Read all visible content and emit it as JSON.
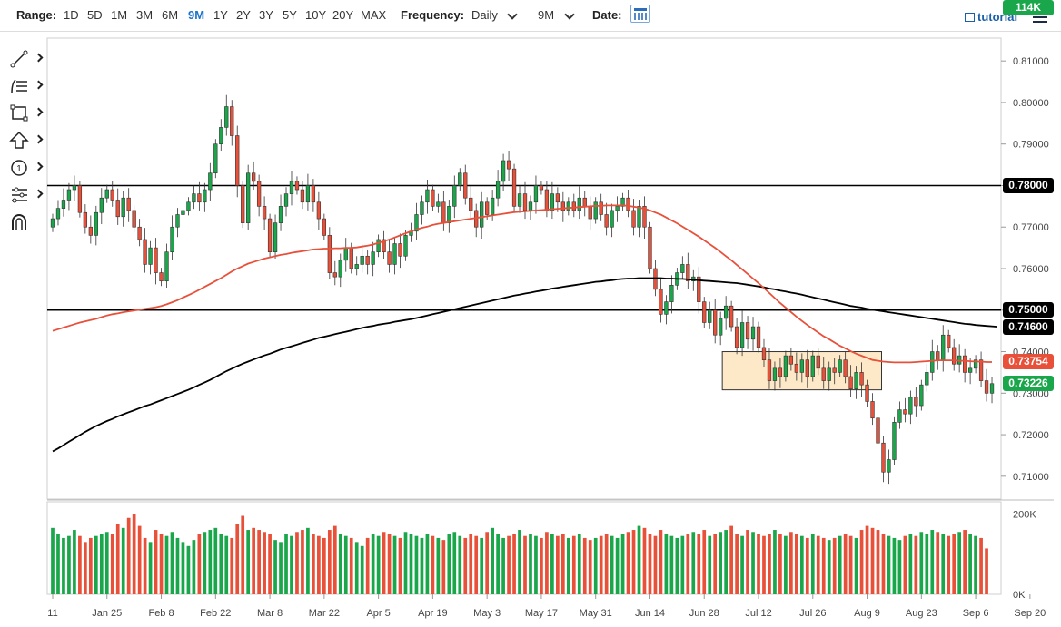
{
  "toolbar": {
    "range_label": "Range:",
    "ranges": [
      "1D",
      "5D",
      "1M",
      "3M",
      "6M",
      "9M",
      "1Y",
      "2Y",
      "3Y",
      "5Y",
      "10Y",
      "20Y",
      "MAX"
    ],
    "active_range": "9M",
    "frequency_label": "Frequency:",
    "frequency_value": "Daily",
    "period_value": "9M",
    "date_label": "Date:",
    "tutorial_label": "tutorial"
  },
  "drawing_tools": [
    "line-tool-icon",
    "fib-tool-icon",
    "rectangle-tool-icon",
    "arrow-tool-icon",
    "counter-tool-icon",
    "measure-tool-icon",
    "magnet-tool-icon"
  ],
  "chart_data": {
    "type": "candlestick",
    "ylim": [
      0.7045,
      0.8155
    ],
    "y_ticks": [
      0.71,
      0.72,
      0.73,
      0.74,
      0.75,
      0.76,
      0.77,
      0.78,
      0.79,
      0.8,
      0.81
    ],
    "y_tick_labels": [
      "0.71000",
      "0.72000",
      "0.73000",
      "0.74000",
      "0.75000",
      "0.76000",
      "0.77000",
      "0.78000",
      "0.79000",
      "0.80000",
      "0.81000"
    ],
    "x_tick_labels": [
      "11",
      "Jan 25",
      "Feb 8",
      "Feb 22",
      "Mar 8",
      "Mar 22",
      "Apr 5",
      "Apr 19",
      "May 3",
      "May 17",
      "May 31",
      "Jun 14",
      "Jun 28",
      "Jul 12",
      "Jul 26",
      "Aug 9",
      "Aug 23",
      "Sep 6",
      "Sep 20"
    ],
    "x_tick_index": [
      0,
      10,
      20,
      30,
      40,
      50,
      60,
      70,
      80,
      90,
      100,
      110,
      120,
      130,
      140,
      150,
      160,
      170,
      180
    ],
    "horizontal_lines": [
      0.78,
      0.75
    ],
    "price_badges": [
      {
        "label": "0.78000",
        "value": 0.78,
        "color": "#000000"
      },
      {
        "label": "0.75000",
        "value": 0.75,
        "color": "#000000"
      },
      {
        "label": "0.74600",
        "value": 0.746,
        "color": "#000000"
      },
      {
        "label": "0.73754",
        "value": 0.73754,
        "color": "#e8503a"
      },
      {
        "label": "0.73226",
        "value": 0.73226,
        "color": "#1aa64a"
      }
    ],
    "consolidation_box": {
      "start_index": 124,
      "end_index": 152,
      "top": 0.74,
      "bottom": 0.7308
    },
    "closes": [
      0.772,
      0.7745,
      0.7765,
      0.779,
      0.78,
      0.7735,
      0.77,
      0.768,
      0.7735,
      0.777,
      0.779,
      0.7765,
      0.7725,
      0.777,
      0.774,
      0.77,
      0.767,
      0.761,
      0.765,
      0.759,
      0.757,
      0.764,
      0.77,
      0.773,
      0.774,
      0.776,
      0.778,
      0.776,
      0.779,
      0.783,
      0.79,
      0.794,
      0.799,
      0.792,
      0.78,
      0.771,
      0.783,
      0.781,
      0.775,
      0.772,
      0.764,
      0.771,
      0.775,
      0.778,
      0.781,
      0.779,
      0.776,
      0.78,
      0.776,
      0.772,
      0.768,
      0.759,
      0.758,
      0.762,
      0.765,
      0.76,
      0.761,
      0.763,
      0.761,
      0.764,
      0.767,
      0.764,
      0.761,
      0.766,
      0.763,
      0.768,
      0.769,
      0.773,
      0.776,
      0.779,
      0.775,
      0.776,
      0.771,
      0.775,
      0.78,
      0.783,
      0.777,
      0.774,
      0.77,
      0.776,
      0.773,
      0.777,
      0.781,
      0.786,
      0.784,
      0.775,
      0.778,
      0.774,
      0.776,
      0.78,
      0.779,
      0.774,
      0.778,
      0.776,
      0.774,
      0.776,
      0.774,
      0.777,
      0.775,
      0.772,
      0.776,
      0.773,
      0.77,
      0.774,
      0.775,
      0.777,
      0.774,
      0.77,
      0.775,
      0.77,
      0.76,
      0.755,
      0.749,
      0.752,
      0.756,
      0.759,
      0.761,
      0.757,
      0.758,
      0.752,
      0.747,
      0.75,
      0.744,
      0.748,
      0.751,
      0.746,
      0.741,
      0.747,
      0.743,
      0.746,
      0.741,
      0.738,
      0.733,
      0.736,
      0.734,
      0.739,
      0.737,
      0.735,
      0.738,
      0.734,
      0.739,
      0.736,
      0.733,
      0.736,
      0.735,
      0.738,
      0.734,
      0.731,
      0.735,
      0.732,
      0.728,
      0.724,
      0.718,
      0.711,
      0.714,
      0.723,
      0.726,
      0.725,
      0.729,
      0.727,
      0.732,
      0.735,
      0.74,
      0.738,
      0.744,
      0.741,
      0.737,
      0.739,
      0.735,
      0.736,
      0.738,
      0.733,
      0.73,
      0.7323
    ],
    "sma_50": [
      0.745,
      0.7454,
      0.7458,
      0.7462,
      0.7466,
      0.747,
      0.7473,
      0.7476,
      0.7479,
      0.7483,
      0.7487,
      0.749,
      0.7492,
      0.7495,
      0.7497,
      0.7499,
      0.7501,
      0.7503,
      0.7505,
      0.7507,
      0.751,
      0.7514,
      0.7519,
      0.7524,
      0.753,
      0.7536,
      0.7542,
      0.7549,
      0.7556,
      0.7563,
      0.757,
      0.7577,
      0.7585,
      0.7593,
      0.76,
      0.7606,
      0.7612,
      0.7616,
      0.762,
      0.7624,
      0.7627,
      0.763,
      0.7633,
      0.7635,
      0.7638,
      0.764,
      0.7642,
      0.7644,
      0.7646,
      0.7647,
      0.7648,
      0.7648,
      0.7649,
      0.7649,
      0.765,
      0.765,
      0.7651,
      0.7653,
      0.7655,
      0.7658,
      0.7662,
      0.7666,
      0.767,
      0.7675,
      0.768,
      0.7685,
      0.769,
      0.7694,
      0.7698,
      0.7701,
      0.7705,
      0.7708,
      0.771,
      0.7712,
      0.7714,
      0.7716,
      0.7718,
      0.772,
      0.7722,
      0.7724,
      0.7726,
      0.7728,
      0.773,
      0.7732,
      0.7734,
      0.7736,
      0.7737,
      0.7738,
      0.7739,
      0.774,
      0.7741,
      0.7742,
      0.7743,
      0.7744,
      0.7745,
      0.7746,
      0.7747,
      0.7748,
      0.7749,
      0.775,
      0.7751,
      0.7751,
      0.7752,
      0.7752,
      0.7752,
      0.7752,
      0.7751,
      0.7749,
      0.7747,
      0.7744,
      0.774,
      0.7735,
      0.773,
      0.7723,
      0.7716,
      0.7709,
      0.7701,
      0.7693,
      0.7685,
      0.7677,
      0.7668,
      0.7659,
      0.765,
      0.764,
      0.763,
      0.762,
      0.7609,
      0.7598,
      0.7587,
      0.7576,
      0.7565,
      0.7553,
      0.7541,
      0.7529,
      0.7517,
      0.7506,
      0.7495,
      0.7484,
      0.7474,
      0.7464,
      0.7455,
      0.7446,
      0.7437,
      0.743,
      0.7422,
      0.7414,
      0.7408,
      0.7401,
      0.7395,
      0.739,
      0.7385,
      0.738,
      0.7378,
      0.7376,
      0.7375,
      0.7374,
      0.7374,
      0.7374,
      0.7374,
      0.7375,
      0.7376,
      0.7377,
      0.7378,
      0.7379,
      0.7379,
      0.7379,
      0.7379,
      0.7378,
      0.7378,
      0.7377,
      0.7376,
      0.7376,
      0.7375,
      0.7375
    ],
    "sma_200": [
      0.716,
      0.7167,
      0.7175,
      0.7183,
      0.7191,
      0.7199,
      0.7207,
      0.7214,
      0.7221,
      0.7227,
      0.7233,
      0.7238,
      0.7244,
      0.7249,
      0.7254,
      0.7259,
      0.7264,
      0.7269,
      0.7273,
      0.7278,
      0.7283,
      0.7288,
      0.7293,
      0.7298,
      0.7303,
      0.7308,
      0.7314,
      0.732,
      0.7326,
      0.7332,
      0.7339,
      0.7346,
      0.7353,
      0.7359,
      0.7365,
      0.7371,
      0.7376,
      0.7381,
      0.7386,
      0.7391,
      0.7395,
      0.74,
      0.7405,
      0.7409,
      0.7413,
      0.7417,
      0.7421,
      0.7425,
      0.7429,
      0.7433,
      0.7436,
      0.7439,
      0.7442,
      0.7445,
      0.7448,
      0.7451,
      0.7454,
      0.7457,
      0.746,
      0.7462,
      0.7465,
      0.7467,
      0.7469,
      0.7472,
      0.7474,
      0.7476,
      0.7478,
      0.7481,
      0.7484,
      0.7487,
      0.749,
      0.7493,
      0.7496,
      0.7499,
      0.7502,
      0.7505,
      0.7508,
      0.7511,
      0.7514,
      0.7517,
      0.752,
      0.7523,
      0.7526,
      0.7529,
      0.7532,
      0.7535,
      0.7537,
      0.754,
      0.7542,
      0.7545,
      0.7547,
      0.7549,
      0.7552,
      0.7554,
      0.7556,
      0.7558,
      0.756,
      0.7562,
      0.7564,
      0.7566,
      0.7568,
      0.7569,
      0.7571,
      0.7572,
      0.7574,
      0.7575,
      0.7576,
      0.7576,
      0.7577,
      0.7577,
      0.7577,
      0.7577,
      0.7577,
      0.7576,
      0.7576,
      0.7575,
      0.7575,
      0.7574,
      0.7573,
      0.7572,
      0.7571,
      0.757,
      0.7569,
      0.7568,
      0.7567,
      0.7566,
      0.7565,
      0.7563,
      0.7561,
      0.7559,
      0.7557,
      0.7555,
      0.7552,
      0.755,
      0.7547,
      0.7545,
      0.7542,
      0.754,
      0.7537,
      0.7534,
      0.7531,
      0.7528,
      0.7525,
      0.7522,
      0.7519,
      0.7516,
      0.7513,
      0.751,
      0.7508,
      0.7506,
      0.7503,
      0.7501,
      0.7499,
      0.7497,
      0.7495,
      0.7493,
      0.7491,
      0.7489,
      0.7487,
      0.7485,
      0.7483,
      0.7481,
      0.7479,
      0.7477,
      0.7475,
      0.7473,
      0.7471,
      0.7469,
      0.7467,
      0.7466,
      0.7464,
      0.7463,
      0.7462,
      0.7461,
      0.746
    ],
    "volume_axis": {
      "ylim": [
        0,
        230
      ],
      "ticks": [
        0,
        200
      ],
      "tick_labels": [
        "0K",
        "200K"
      ]
    },
    "volumes": [
      165,
      150,
      140,
      145,
      160,
      145,
      130,
      140,
      145,
      150,
      155,
      150,
      175,
      165,
      190,
      200,
      170,
      140,
      130,
      160,
      150,
      145,
      155,
      140,
      130,
      120,
      135,
      150,
      155,
      160,
      165,
      150,
      145,
      140,
      175,
      195,
      160,
      165,
      160,
      155,
      150,
      135,
      130,
      150,
      145,
      155,
      160,
      165,
      150,
      145,
      140,
      160,
      170,
      150,
      145,
      140,
      130,
      120,
      140,
      150,
      145,
      155,
      150,
      145,
      140,
      155,
      150,
      145,
      140,
      150,
      145,
      140,
      135,
      150,
      155,
      145,
      140,
      150,
      145,
      140,
      155,
      165,
      150,
      140,
      145,
      150,
      160,
      145,
      150,
      145,
      140,
      155,
      150,
      145,
      150,
      140,
      145,
      150,
      140,
      135,
      140,
      145,
      150,
      145,
      140,
      150,
      155,
      160,
      170,
      165,
      150,
      145,
      160,
      150,
      145,
      140,
      145,
      150,
      155,
      150,
      160,
      145,
      150,
      155,
      160,
      170,
      150,
      145,
      160,
      155,
      150,
      145,
      150,
      160,
      150,
      145,
      155,
      150,
      145,
      140,
      150,
      145,
      140,
      135,
      140,
      145,
      150,
      145,
      140,
      160,
      170,
      165,
      160,
      150,
      145,
      140,
      135,
      145,
      150,
      145,
      155,
      150,
      160,
      155,
      150,
      145,
      150,
      155,
      160,
      150,
      145,
      140,
      114
    ]
  },
  "volume_value_label": "114K"
}
